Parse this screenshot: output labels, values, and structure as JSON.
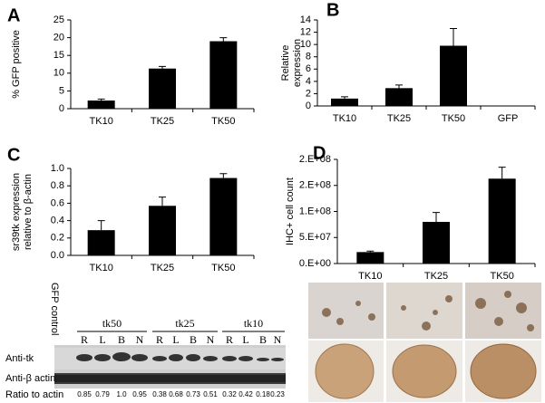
{
  "chart_data": [
    {
      "type": "bar",
      "panel": "A",
      "ylabel": [
        "% GFP positive"
      ],
      "categories": [
        "TK10",
        "TK25",
        "TK50"
      ],
      "values": [
        2.3,
        11.3,
        19
      ],
      "errors": [
        0.4,
        0.6,
        1.0
      ],
      "color": "#000000",
      "ylim": [
        0,
        25
      ],
      "yticks": [
        0,
        5,
        10,
        15,
        20,
        25
      ]
    },
    {
      "type": "bar",
      "panel": "B",
      "ylabel": [
        "Relative",
        "expression"
      ],
      "categories": [
        "TK10",
        "TK25",
        "TK50",
        "GFP"
      ],
      "values": [
        1.2,
        2.9,
        9.8,
        0
      ],
      "errors": [
        0.3,
        0.5,
        2.8,
        0
      ],
      "color": "#000000",
      "ylim": [
        0,
        14
      ],
      "yticks": [
        0,
        2,
        4,
        6,
        8,
        10,
        12,
        14
      ]
    },
    {
      "type": "bar",
      "panel": "C",
      "ylabel": [
        "sr39tk expression",
        "relative to β-actin"
      ],
      "categories": [
        "TK10",
        "TK25",
        "TK50"
      ],
      "values": [
        0.29,
        0.57,
        0.89
      ],
      "errors": [
        0.11,
        0.1,
        0.05
      ],
      "color": "#000000",
      "ylim": [
        0,
        1
      ],
      "yticks": [
        {
          "value": 0,
          "label": "0.0"
        },
        0.2,
        0.4,
        0.6,
        0.8,
        {
          "value": 1,
          "label": "1.0"
        }
      ]
    },
    {
      "type": "bar",
      "panel": "D",
      "ylabel": [
        "IHC+ cell count"
      ],
      "categories": [
        "TK10",
        "TK25",
        "TK50"
      ],
      "values": [
        22000000,
        80000000,
        163000000
      ],
      "errors": [
        2000000,
        18000000,
        22000000
      ],
      "color": "#000000",
      "ylim": [
        0,
        200000000
      ],
      "yticks": [
        {
          "value": 0,
          "label": "0.E+00"
        },
        {
          "value": 50000000,
          "label": "5.E+07"
        },
        {
          "value": 100000000,
          "label": "1.E+08"
        },
        {
          "value": 150000000,
          "label": "2.E+08"
        },
        {
          "value": 200000000,
          "label": "2.E+08"
        }
      ]
    }
  ],
  "blot": {
    "control": "GFP control",
    "groups": [
      {
        "name": "tk50",
        "lanes": [
          "R",
          "L",
          "B",
          "N"
        ]
      },
      {
        "name": "tk25",
        "lanes": [
          "R",
          "L",
          "B",
          "N"
        ]
      },
      {
        "name": "tk10",
        "lanes": [
          "R",
          "L",
          "B",
          "N"
        ]
      }
    ],
    "rows": [
      "Anti-tk",
      "Anti-β actin"
    ],
    "ratio_label": "Ratio to actin",
    "ratios": [
      "0.85",
      "0.79",
      "1.0",
      "0.95",
      "0.38",
      "0.68",
      "0.73",
      "0.51",
      "0.32",
      "0.42",
      "0.18",
      "0.23"
    ]
  }
}
